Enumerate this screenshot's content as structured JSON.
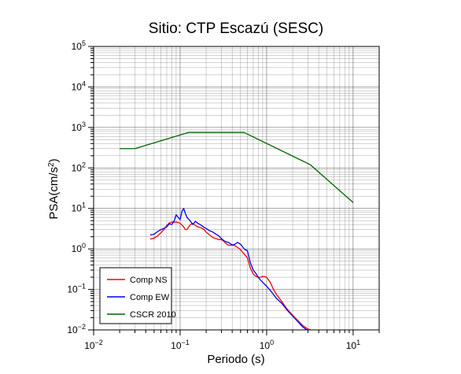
{
  "chart_data": {
    "type": "line",
    "title": "Sitio: CTP Escazú (SESC)",
    "xlabel": "Periodo (s)",
    "ylabel_main": "PSA(cm/s",
    "ylabel_sup": "2",
    "ylabel_tail": ")",
    "xscale": "log",
    "yscale": "log",
    "xlim": [
      0.01,
      20
    ],
    "ylim": [
      0.01,
      100000
    ],
    "grid": true,
    "legend_position": "bottom-left",
    "xticks": [
      {
        "base": "10",
        "exp": "−2"
      },
      {
        "base": "10",
        "exp": "−1"
      },
      {
        "base": "10",
        "exp": "0"
      },
      {
        "base": "10",
        "exp": "1"
      }
    ],
    "yticks": [
      {
        "base": "10",
        "exp": "−2"
      },
      {
        "base": "10",
        "exp": "−1"
      },
      {
        "base": "10",
        "exp": "0"
      },
      {
        "base": "10",
        "exp": "1"
      },
      {
        "base": "10",
        "exp": "2"
      },
      {
        "base": "10",
        "exp": "3"
      },
      {
        "base": "10",
        "exp": "4"
      },
      {
        "base": "10",
        "exp": "5"
      }
    ],
    "series": [
      {
        "name": "Comp NS",
        "color": "#ff0000",
        "x": [
          0.045,
          0.05,
          0.055,
          0.06,
          0.065,
          0.07,
          0.075,
          0.08,
          0.085,
          0.09,
          0.095,
          0.1,
          0.105,
          0.11,
          0.115,
          0.12,
          0.13,
          0.14,
          0.15,
          0.16,
          0.17,
          0.18,
          0.19,
          0.2,
          0.22,
          0.24,
          0.26,
          0.28,
          0.3,
          0.32,
          0.34,
          0.36,
          0.38,
          0.4,
          0.43,
          0.46,
          0.5,
          0.55,
          0.6,
          0.65,
          0.7,
          0.75,
          0.8,
          0.85,
          0.9,
          1.0,
          1.1,
          1.2,
          1.3,
          1.5,
          1.7,
          2.0,
          2.3,
          2.6,
          3.0,
          3.3
        ],
        "y": [
          1.75,
          1.85,
          2.1,
          2.5,
          3.0,
          3.8,
          4.4,
          4.6,
          4.6,
          4.6,
          4.5,
          4.3,
          3.9,
          3.5,
          3.0,
          3.0,
          3.9,
          4.3,
          3.8,
          3.5,
          3.4,
          3.2,
          3.0,
          2.6,
          2.2,
          1.9,
          1.8,
          1.7,
          1.7,
          1.55,
          1.35,
          1.25,
          1.22,
          1.25,
          1.2,
          1.1,
          0.95,
          0.75,
          0.6,
          0.33,
          0.24,
          0.21,
          0.2,
          0.2,
          0.21,
          0.2,
          0.15,
          0.1,
          0.075,
          0.05,
          0.034,
          0.023,
          0.017,
          0.013,
          0.0105,
          0.0098
        ]
      },
      {
        "name": "Comp EW",
        "color": "#0000ff",
        "x": [
          0.045,
          0.05,
          0.055,
          0.06,
          0.065,
          0.07,
          0.075,
          0.08,
          0.085,
          0.09,
          0.095,
          0.1,
          0.105,
          0.11,
          0.115,
          0.12,
          0.13,
          0.14,
          0.15,
          0.16,
          0.17,
          0.18,
          0.19,
          0.2,
          0.22,
          0.24,
          0.26,
          0.28,
          0.3,
          0.32,
          0.34,
          0.36,
          0.38,
          0.4,
          0.43,
          0.46,
          0.5,
          0.55,
          0.6,
          0.65,
          0.7,
          0.75,
          0.8,
          0.85,
          0.9,
          1.0,
          1.1,
          1.2,
          1.3,
          1.5,
          1.7,
          2.0,
          2.3,
          2.6,
          3.0,
          3.3
        ],
        "y": [
          2.2,
          2.3,
          2.7,
          3.0,
          3.2,
          3.5,
          4.2,
          4.0,
          4.8,
          7.0,
          6.0,
          5.3,
          8.5,
          10.0,
          7.5,
          6.0,
          5.0,
          4.0,
          4.8,
          4.3,
          4.0,
          3.7,
          3.4,
          3.2,
          2.8,
          2.6,
          2.3,
          2.1,
          1.8,
          1.6,
          1.5,
          1.45,
          1.35,
          1.25,
          1.3,
          1.45,
          1.3,
          1.0,
          0.9,
          0.45,
          0.3,
          0.25,
          0.2,
          0.17,
          0.15,
          0.12,
          0.095,
          0.075,
          0.06,
          0.045,
          0.032,
          0.022,
          0.016,
          0.012,
          0.0095,
          0.009
        ]
      },
      {
        "name": "CSCR 2010",
        "color": "#006400",
        "x": [
          0.02,
          0.03,
          0.125,
          0.55,
          3.2,
          10
        ],
        "y": [
          300,
          300,
          750,
          750,
          120,
          14
        ]
      }
    ]
  }
}
